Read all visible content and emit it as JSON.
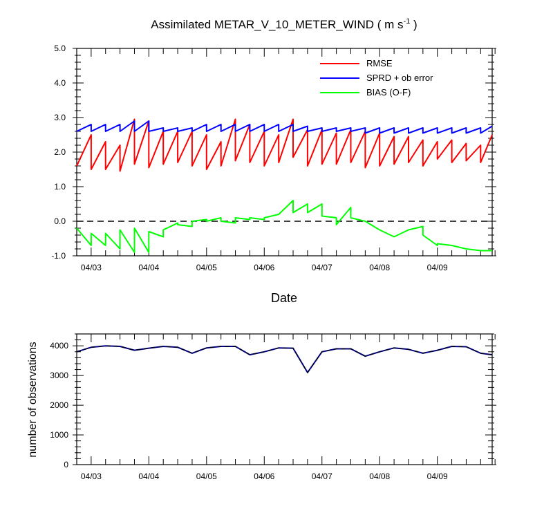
{
  "chart_data": [
    {
      "type": "line",
      "title": "Assimilated METAR_V_10_METER_WIND ( m s",
      "title_units_exp": "-1",
      "title_close": " )",
      "xlabel": "Date",
      "ylabel": "",
      "ylim": [
        -1.0,
        5.0
      ],
      "xlim": [
        0,
        7.2
      ],
      "yticks": [
        "5.0",
        "4.0",
        "3.0",
        "2.0",
        "1.0",
        "0.0",
        "-1.0"
      ],
      "ytick_values": [
        5,
        4,
        3,
        2,
        1,
        0,
        -1
      ],
      "xtick_labels": [
        "04/03",
        "04/04",
        "04/05",
        "04/06",
        "04/07",
        "04/08",
        "04/09"
      ],
      "xtick_values": [
        0.25,
        1.25,
        2.25,
        3.25,
        4.25,
        5.25,
        6.25
      ],
      "zero_line": true,
      "legend_position": "top-right",
      "series": [
        {
          "name": "RMSE",
          "color": "#ff0000",
          "x": [
            0,
            0.25,
            0.25,
            0.5,
            0.5,
            0.75,
            0.75,
            1.0,
            1.0,
            1.25,
            1.25,
            1.5,
            1.5,
            1.75,
            1.75,
            2.0,
            2.0,
            2.25,
            2.25,
            2.5,
            2.5,
            2.75,
            2.75,
            3.0,
            3.0,
            3.25,
            3.25,
            3.5,
            3.5,
            3.75,
            3.75,
            4.0,
            4.0,
            4.25,
            4.25,
            4.5,
            4.5,
            4.75,
            4.75,
            5.0,
            5.0,
            5.25,
            5.25,
            5.5,
            5.5,
            5.75,
            5.75,
            6.0,
            6.0,
            6.25,
            6.25,
            6.5,
            6.5,
            6.75,
            6.75,
            7.0,
            7.0,
            7.2
          ],
          "values": [
            1.6,
            2.5,
            1.5,
            2.3,
            1.5,
            2.2,
            1.45,
            2.95,
            1.65,
            2.9,
            1.55,
            2.6,
            1.65,
            2.6,
            1.7,
            2.6,
            1.6,
            2.5,
            1.5,
            2.3,
            1.6,
            2.95,
            1.75,
            2.8,
            1.7,
            2.6,
            1.6,
            2.5,
            1.7,
            2.95,
            1.85,
            2.65,
            1.6,
            2.65,
            1.65,
            2.55,
            1.65,
            2.65,
            1.7,
            2.6,
            1.55,
            2.55,
            1.6,
            2.45,
            1.65,
            2.45,
            1.7,
            2.35,
            1.6,
            2.3,
            1.8,
            2.35,
            1.7,
            2.25,
            1.75,
            2.2,
            1.7,
            2.5
          ]
        },
        {
          "name": "SPRD + ob error",
          "color": "#0000ff",
          "x": [
            0,
            0.25,
            0.25,
            0.5,
            0.5,
            0.75,
            0.75,
            1.0,
            1.0,
            1.25,
            1.25,
            1.5,
            1.5,
            1.75,
            1.75,
            2.0,
            2.0,
            2.25,
            2.25,
            2.5,
            2.5,
            2.75,
            2.75,
            3.0,
            3.0,
            3.25,
            3.25,
            3.5,
            3.5,
            3.75,
            3.75,
            4.0,
            4.0,
            4.25,
            4.25,
            4.5,
            4.5,
            4.75,
            4.75,
            5.0,
            5.0,
            5.25,
            5.25,
            5.5,
            5.5,
            5.75,
            5.75,
            6.0,
            6.0,
            6.25,
            6.25,
            6.5,
            6.5,
            6.75,
            6.75,
            7.0,
            7.0,
            7.2
          ],
          "values": [
            2.6,
            2.8,
            2.6,
            2.8,
            2.6,
            2.8,
            2.6,
            2.9,
            2.6,
            2.9,
            2.6,
            2.7,
            2.6,
            2.7,
            2.6,
            2.7,
            2.6,
            2.8,
            2.6,
            2.8,
            2.6,
            2.8,
            2.6,
            2.8,
            2.6,
            2.8,
            2.6,
            2.8,
            2.6,
            2.8,
            2.6,
            2.75,
            2.6,
            2.7,
            2.6,
            2.7,
            2.6,
            2.7,
            2.6,
            2.7,
            2.55,
            2.7,
            2.55,
            2.7,
            2.55,
            2.7,
            2.55,
            2.7,
            2.55,
            2.7,
            2.55,
            2.7,
            2.55,
            2.7,
            2.55,
            2.7,
            2.55,
            2.75
          ]
        },
        {
          "name": "BIAS (O-F)",
          "color": "#00ff00",
          "x": [
            0,
            0.25,
            0.25,
            0.5,
            0.5,
            0.75,
            0.75,
            1.0,
            1.0,
            1.25,
            1.25,
            1.5,
            1.5,
            1.75,
            1.75,
            2.0,
            2.0,
            2.25,
            2.25,
            2.5,
            2.5,
            2.75,
            2.75,
            3.0,
            3.0,
            3.25,
            3.25,
            3.5,
            3.5,
            3.75,
            3.75,
            4.0,
            4.0,
            4.25,
            4.25,
            4.5,
            4.5,
            4.75,
            4.75,
            5.0,
            5.0,
            5.25,
            5.5,
            5.75,
            6.0,
            6.0,
            6.25,
            6.25,
            6.5,
            6.5,
            6.75,
            6.75,
            7.0,
            7.2
          ],
          "values": [
            -0.2,
            -0.7,
            -0.35,
            -0.7,
            -0.35,
            -0.8,
            -0.25,
            -0.9,
            -0.2,
            -0.9,
            -0.3,
            -0.45,
            -0.25,
            -0.05,
            -0.1,
            -0.15,
            0.0,
            0.05,
            0.0,
            0.1,
            0.0,
            -0.05,
            0.1,
            0.05,
            0.1,
            0.05,
            0.1,
            0.2,
            0.2,
            0.6,
            0.25,
            0.5,
            0.25,
            0.5,
            0.15,
            0.1,
            -0.1,
            0.4,
            0.1,
            0.0,
            0.0,
            -0.25,
            -0.45,
            -0.25,
            -0.15,
            -0.4,
            -0.7,
            -0.65,
            -0.7,
            -0.7,
            -0.8,
            -0.8,
            -0.85,
            -0.85
          ]
        }
      ]
    },
    {
      "type": "line",
      "title": "",
      "xlabel": "",
      "ylabel": "number of observations",
      "ylim": [
        0,
        4400
      ],
      "xlim": [
        0,
        7.2
      ],
      "yticks": [
        "4000",
        "3000",
        "2000",
        "1000",
        "0"
      ],
      "ytick_values": [
        4000,
        3000,
        2000,
        1000,
        0
      ],
      "xtick_labels": [
        "04/03",
        "04/04",
        "04/05",
        "04/06",
        "04/07",
        "04/08",
        "04/09"
      ],
      "xtick_values": [
        0.25,
        1.25,
        2.25,
        3.25,
        4.25,
        5.25,
        6.25
      ],
      "series": [
        {
          "color": "#00008b",
          "x": [
            0,
            0.25,
            0.5,
            0.75,
            1.0,
            1.25,
            1.5,
            1.75,
            2.0,
            2.25,
            2.5,
            2.75,
            3.0,
            3.25,
            3.5,
            3.75,
            4.0,
            4.25,
            4.5,
            4.75,
            5.0,
            5.25,
            5.5,
            5.75,
            6.0,
            6.25,
            6.5,
            6.75,
            7.0,
            7.2
          ],
          "values": [
            3800,
            3950,
            4000,
            3980,
            3850,
            3920,
            3980,
            3950,
            3750,
            3930,
            3980,
            3980,
            3700,
            3800,
            3930,
            3920,
            3100,
            3800,
            3900,
            3900,
            3650,
            3800,
            3930,
            3880,
            3750,
            3850,
            3980,
            3970,
            3750,
            3700
          ]
        }
      ]
    }
  ]
}
